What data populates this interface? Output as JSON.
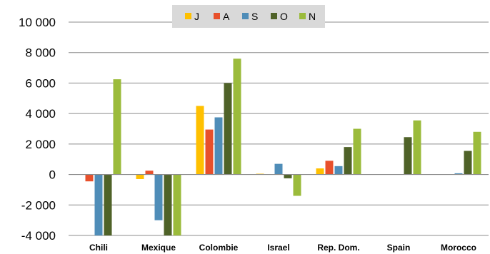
{
  "chart_data": {
    "type": "bar",
    "title": "",
    "xlabel": "",
    "ylabel": "",
    "categories": [
      "Chili",
      "Mexique",
      "Colombie",
      "Israel",
      "Rep. Dom.",
      "Spain",
      "Morocco"
    ],
    "series": [
      {
        "name": "J",
        "color": "#FFC000",
        "values": [
          0,
          -300,
          4500,
          50,
          400,
          0,
          0
        ]
      },
      {
        "name": "A",
        "color": "#E8502B",
        "values": [
          -450,
          250,
          2950,
          0,
          900,
          0,
          0
        ]
      },
      {
        "name": "S",
        "color": "#4F8DB8",
        "values": [
          -4000,
          -3000,
          3750,
          700,
          550,
          0,
          80
        ]
      },
      {
        "name": "O",
        "color": "#4F6228",
        "values": [
          -4000,
          -4000,
          6000,
          -250,
          1800,
          2450,
          1550
        ]
      },
      {
        "name": "N",
        "color": "#9BBB3B",
        "values": [
          6250,
          -4000,
          7600,
          -1400,
          3000,
          3550,
          2800
        ]
      }
    ],
    "ylim": [
      -4000,
      10000
    ],
    "yticks": [
      10000,
      8000,
      6000,
      4000,
      2000,
      0,
      -2000,
      -4000
    ],
    "ytick_labels": [
      "10 000",
      "8 000",
      "6 000",
      "4 000",
      "2 000",
      "0",
      "-2 000",
      "-4 000"
    ],
    "grid": true,
    "legend": "top-center"
  }
}
